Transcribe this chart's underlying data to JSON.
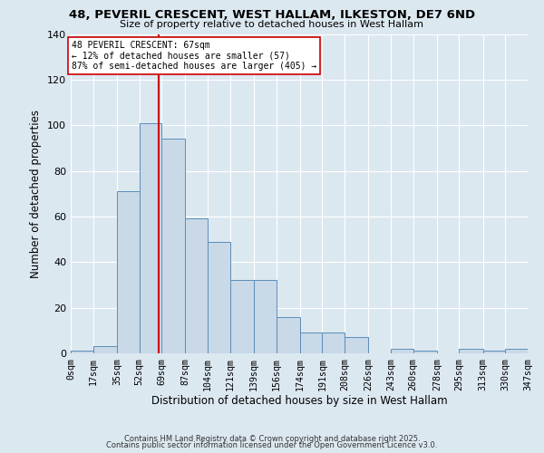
{
  "title": "48, PEVERIL CRESCENT, WEST HALLAM, ILKESTON, DE7 6ND",
  "subtitle": "Size of property relative to detached houses in West Hallam",
  "xlabel": "Distribution of detached houses by size in West Hallam",
  "ylabel": "Number of detached properties",
  "bin_edges": [
    0,
    17,
    35,
    52,
    69,
    87,
    104,
    121,
    139,
    156,
    174,
    191,
    208,
    226,
    243,
    260,
    278,
    295,
    313,
    330,
    347
  ],
  "bin_labels": [
    "0sqm",
    "17sqm",
    "35sqm",
    "52sqm",
    "69sqm",
    "87sqm",
    "104sqm",
    "121sqm",
    "139sqm",
    "156sqm",
    "174sqm",
    "191sqm",
    "208sqm",
    "226sqm",
    "243sqm",
    "260sqm",
    "278sqm",
    "295sqm",
    "313sqm",
    "330sqm",
    "347sqm"
  ],
  "counts": [
    1,
    3,
    71,
    101,
    94,
    59,
    49,
    32,
    32,
    16,
    9,
    9,
    7,
    0,
    2,
    1,
    0,
    2,
    1,
    2
  ],
  "bar_facecolor": "#c9d9e8",
  "bar_edgecolor": "#5b8db8",
  "property_line_x": 67,
  "property_line_color": "#cc0000",
  "annotation_line1": "48 PEVERIL CRESCENT: 67sqm",
  "annotation_line2": "← 12% of detached houses are smaller (57)",
  "annotation_line3": "87% of semi-detached houses are larger (405) →",
  "annotation_box_edgecolor": "#cc0000",
  "annotation_box_facecolor": "#ffffff",
  "background_color": "#dce8f0",
  "grid_color": "#ffffff",
  "ylim": [
    0,
    140
  ],
  "yticks": [
    0,
    20,
    40,
    60,
    80,
    100,
    120,
    140
  ],
  "footer_line1": "Contains HM Land Registry data © Crown copyright and database right 2025.",
  "footer_line2": "Contains public sector information licensed under the Open Government Licence v3.0."
}
